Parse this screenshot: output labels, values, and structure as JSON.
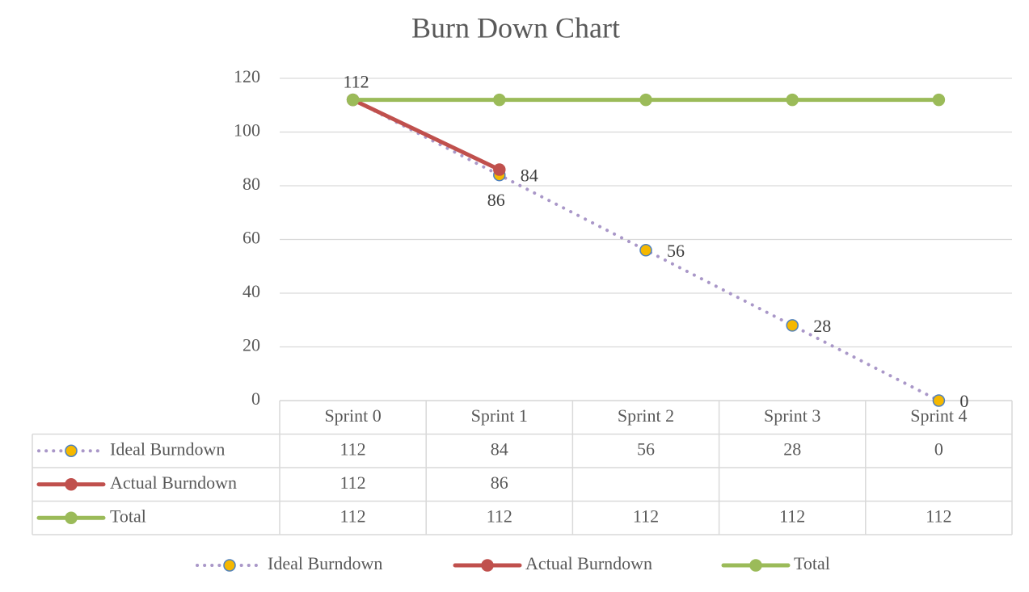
{
  "chart_data": {
    "type": "line",
    "title": "Burn Down Chart",
    "categories": [
      "Sprint 0",
      "Sprint 1",
      "Sprint 2",
      "Sprint 3",
      "Sprint 4"
    ],
    "series": [
      {
        "name": "Ideal Burndown",
        "color": "#a997c8",
        "dash": "dotted",
        "marker_fill": "#f5b800",
        "marker_stroke": "#4f81bd",
        "values": [
          112,
          84,
          56,
          28,
          0
        ]
      },
      {
        "name": "Actual Burndown",
        "color": "#c0504d",
        "marker_fill": "#c0504d",
        "marker_stroke": "#c0504d",
        "values": [
          112,
          86,
          null,
          null,
          null
        ]
      },
      {
        "name": "Total",
        "color": "#9bbb59",
        "marker_fill": "#9bbb59",
        "marker_stroke": "#9bbb59",
        "values": [
          112,
          112,
          112,
          112,
          112
        ]
      }
    ],
    "ylim": [
      0,
      120
    ],
    "yticks": [
      0,
      20,
      40,
      60,
      80,
      100,
      120
    ],
    "grid": true,
    "data_table": true,
    "legend": "bottom"
  }
}
